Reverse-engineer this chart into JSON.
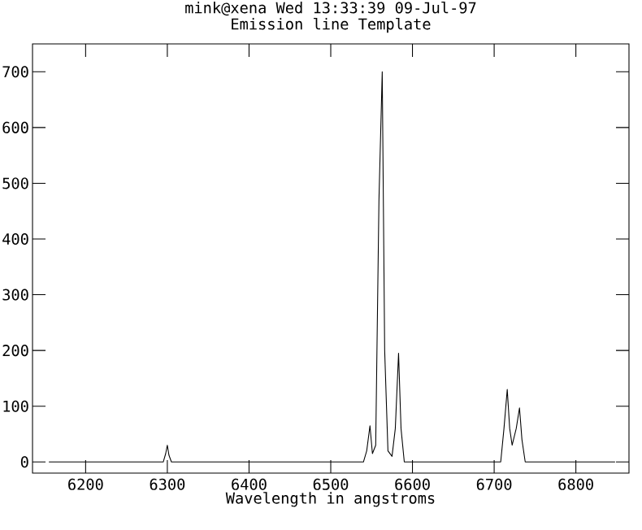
{
  "chart_data": {
    "type": "line",
    "title": "mink@xena Wed 13:33:39 09-Jul-97",
    "subtitle": "Emission line Template",
    "xlabel": "Wavelength in angstroms",
    "x": [
      6155,
      6295,
      6298,
      6300,
      6302,
      6305,
      6540,
      6544,
      6548,
      6551,
      6555,
      6559,
      6563,
      6566,
      6570,
      6575,
      6579,
      6583,
      6586,
      6590,
      6708,
      6712,
      6716,
      6719,
      6722,
      6727,
      6731,
      6734,
      6738,
      6848
    ],
    "series": [
      {
        "color": "#000000",
        "values": [
          0,
          0,
          15,
          30,
          12,
          0,
          0,
          20,
          65,
          15,
          30,
          470,
          700,
          200,
          20,
          10,
          60,
          195,
          60,
          0,
          0,
          60,
          130,
          60,
          30,
          60,
          97,
          40,
          0,
          0
        ]
      }
    ],
    "xlim": [
      6135,
      6865
    ],
    "ylim": [
      -20,
      750
    ],
    "xticks": [
      6200,
      6300,
      6400,
      6500,
      6600,
      6700,
      6800
    ],
    "yticks": [
      0,
      100,
      200,
      300,
      400,
      500,
      600,
      700
    ],
    "grid": false,
    "marker": "none",
    "line_style": "solid"
  }
}
